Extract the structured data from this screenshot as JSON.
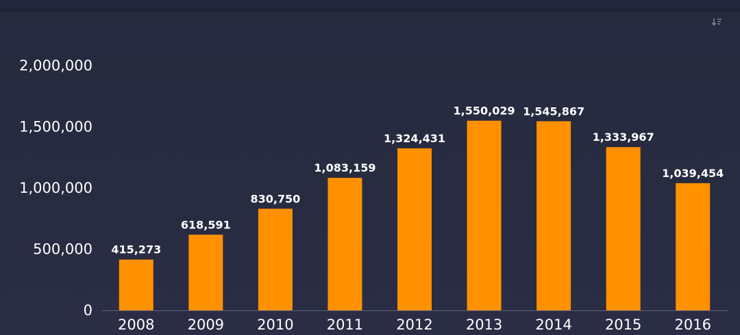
{
  "colors": {
    "background": "#272b40",
    "bar": "#ff9100",
    "axis_line": "#5a5f7a",
    "text": "#ffffff",
    "icon": "#8a8fa8"
  },
  "toolbar": {
    "export_icon": "sort-download-icon"
  },
  "chart_data": {
    "type": "bar",
    "categories": [
      "2008",
      "2009",
      "2010",
      "2011",
      "2012",
      "2013",
      "2014",
      "2015",
      "2016"
    ],
    "values": [
      415273,
      618591,
      830750,
      1083159,
      1324431,
      1550029,
      1545867,
      1333967,
      1039454
    ],
    "data_labels": [
      "415,273",
      "618,591",
      "830,750",
      "1,083,159",
      "1,324,431",
      "1,550,029",
      "1,545,867",
      "1,333,967",
      "1,039,454"
    ],
    "y_ticks": [
      0,
      500000,
      1000000,
      1500000,
      2000000
    ],
    "y_tick_labels": [
      "0",
      "500,000",
      "1,000,000",
      "1,500,000",
      "2,000,000"
    ],
    "ylim": [
      0,
      2000000
    ],
    "title": "",
    "xlabel": "",
    "ylabel": "",
    "grid": false,
    "legend": false
  }
}
